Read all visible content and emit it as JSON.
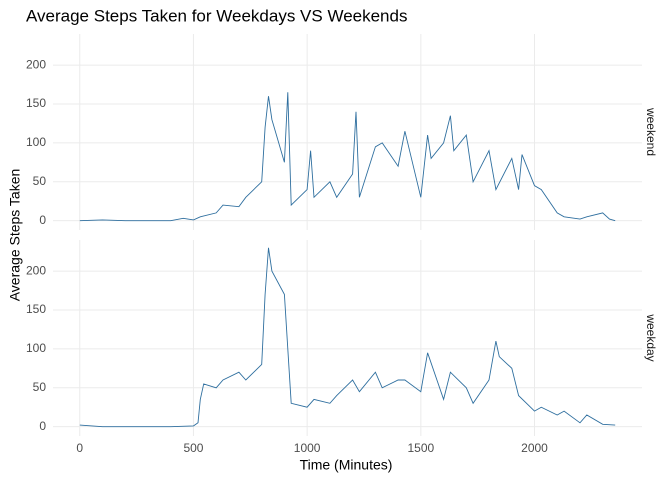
{
  "chart_data": {
    "type": "line",
    "title": "Average Steps Taken for Weekdays VS Weekends",
    "x_label": "Time (Minutes)",
    "y_label": "Average Steps Taken",
    "xlim": [
      -117.75,
      2472.75
    ],
    "xticks": [
      0,
      500,
      1000,
      1500,
      2000
    ],
    "ylim": [
      -12,
      240
    ],
    "yticks": [
      0,
      50,
      100,
      150,
      200
    ],
    "grid": true,
    "color": "#2f6f9f",
    "facets": [
      {
        "name": "weekend",
        "x": [
          0,
          100,
          200,
          300,
          400,
          455,
          500,
          530,
          600,
          630,
          700,
          730,
          800,
          815,
          830,
          845,
          900,
          915,
          930,
          1000,
          1015,
          1030,
          1100,
          1130,
          1200,
          1215,
          1230,
          1300,
          1330,
          1400,
          1430,
          1500,
          1530,
          1545,
          1600,
          1630,
          1645,
          1700,
          1730,
          1800,
          1830,
          1900,
          1930,
          1945,
          2000,
          2030,
          2100,
          2130,
          2200,
          2230,
          2300,
          2330,
          2355
        ],
        "values": [
          0,
          1,
          0,
          0,
          0,
          3,
          1,
          5,
          10,
          20,
          18,
          30,
          50,
          120,
          160,
          130,
          75,
          165,
          20,
          40,
          90,
          30,
          50,
          30,
          60,
          140,
          30,
          95,
          100,
          70,
          115,
          30,
          110,
          80,
          100,
          135,
          90,
          110,
          50,
          90,
          40,
          80,
          40,
          85,
          45,
          40,
          10,
          5,
          2,
          5,
          10,
          2,
          0
        ]
      },
      {
        "name": "weekday",
        "x": [
          0,
          100,
          200,
          300,
          400,
          500,
          520,
          530,
          545,
          600,
          630,
          700,
          730,
          800,
          815,
          830,
          845,
          900,
          915,
          930,
          1000,
          1030,
          1100,
          1130,
          1200,
          1230,
          1300,
          1330,
          1400,
          1430,
          1500,
          1530,
          1600,
          1630,
          1700,
          1730,
          1800,
          1830,
          1845,
          1900,
          1930,
          2000,
          2030,
          2100,
          2130,
          2200,
          2230,
          2300,
          2355
        ],
        "values": [
          2,
          0,
          0,
          0,
          0,
          1,
          5,
          35,
          55,
          50,
          60,
          70,
          60,
          80,
          170,
          230,
          200,
          170,
          100,
          30,
          25,
          35,
          30,
          40,
          60,
          45,
          70,
          50,
          60,
          60,
          45,
          95,
          35,
          70,
          50,
          30,
          60,
          110,
          90,
          75,
          40,
          20,
          25,
          15,
          20,
          5,
          15,
          3,
          2
        ]
      }
    ]
  }
}
